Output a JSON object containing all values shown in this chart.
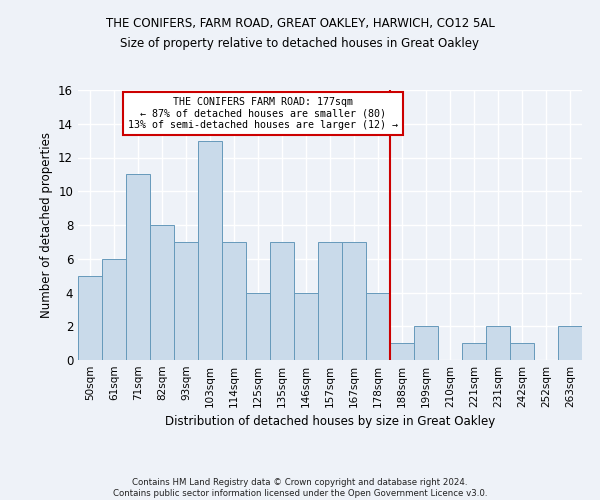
{
  "title1": "THE CONIFERS, FARM ROAD, GREAT OAKLEY, HARWICH, CO12 5AL",
  "title2": "Size of property relative to detached houses in Great Oakley",
  "xlabel": "Distribution of detached houses by size in Great Oakley",
  "ylabel": "Number of detached properties",
  "categories": [
    "50sqm",
    "61sqm",
    "71sqm",
    "82sqm",
    "93sqm",
    "103sqm",
    "114sqm",
    "125sqm",
    "135sqm",
    "146sqm",
    "157sqm",
    "167sqm",
    "178sqm",
    "188sqm",
    "199sqm",
    "210sqm",
    "221sqm",
    "231sqm",
    "242sqm",
    "252sqm",
    "263sqm"
  ],
  "values": [
    5,
    6,
    11,
    8,
    7,
    13,
    7,
    4,
    7,
    4,
    7,
    7,
    4,
    1,
    2,
    0,
    1,
    2,
    1,
    0,
    2
  ],
  "bar_color": "#c9daea",
  "bar_edge_color": "#6699bb",
  "vline_color": "#cc0000",
  "annotation_text": "THE CONIFERS FARM ROAD: 177sqm\n← 87% of detached houses are smaller (80)\n13% of semi-detached houses are larger (12) →",
  "annotation_box_color": "#cc0000",
  "ylim": [
    0,
    16
  ],
  "yticks": [
    0,
    2,
    4,
    6,
    8,
    10,
    12,
    14,
    16
  ],
  "footer": "Contains HM Land Registry data © Crown copyright and database right 2024.\nContains public sector information licensed under the Open Government Licence v3.0.",
  "background_color": "#eef2f8",
  "grid_color": "#ffffff"
}
